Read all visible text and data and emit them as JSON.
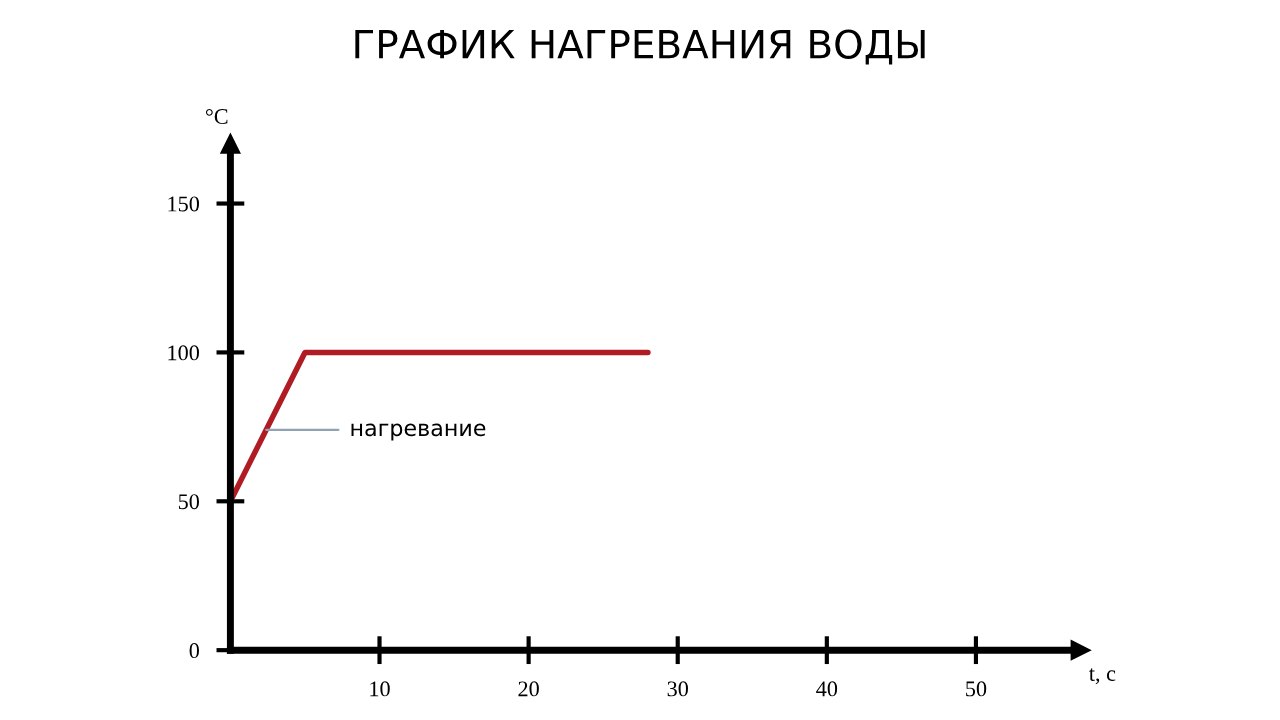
{
  "chart_data": {
    "type": "line",
    "title": "ГРАФИК НАГРЕВАНИЯ ВОДЫ",
    "xlabel": "t, c",
    "ylabel": "°C",
    "x": [
      0,
      5,
      28
    ],
    "series": [
      {
        "color": "#b01c24",
        "values": [
          50,
          100,
          100
        ]
      }
    ],
    "annotations": [
      {
        "text": "нагревание",
        "x": 2.4,
        "y": 74
      }
    ],
    "xlim": [
      0,
      57
    ],
    "ylim": [
      0,
      170
    ],
    "xticks": [
      10,
      20,
      30,
      40,
      50
    ],
    "yticks": [
      0,
      50,
      100,
      150
    ],
    "grid": false,
    "legend": false,
    "marker": "none",
    "line_style": "solid"
  }
}
